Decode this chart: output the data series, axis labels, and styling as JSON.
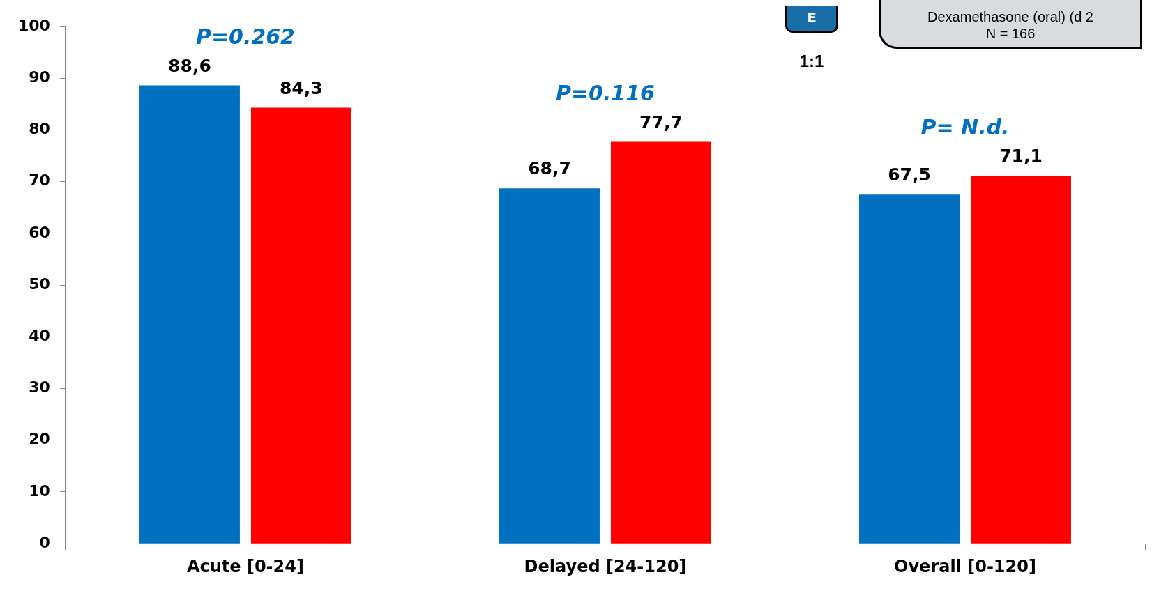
{
  "chart_data": {
    "type": "bar",
    "categories": [
      "Acute [0-24]",
      "Delayed [24-120]",
      "Overall [0-120]"
    ],
    "series": [
      {
        "color": "#0070c0",
        "values": [
          88.6,
          68.7,
          67.5
        ],
        "value_labels": [
          "88,6",
          "68,7",
          "67,5"
        ]
      },
      {
        "color": "#ff0000",
        "values": [
          84.3,
          77.7,
          71.1
        ],
        "value_labels": [
          "84,3",
          "77,7",
          "71,1"
        ]
      }
    ],
    "ylim": [
      0,
      100
    ],
    "yticks": [
      0,
      10,
      20,
      30,
      40,
      50,
      60,
      70,
      80,
      90,
      100
    ],
    "grid": false,
    "legend": false,
    "annotations": [
      "P=0.262",
      "P=0.116",
      "P= N.d.",
      "E",
      "1:1",
      "Dexamethasone (oral) (d 2",
      "N = 166"
    ]
  }
}
